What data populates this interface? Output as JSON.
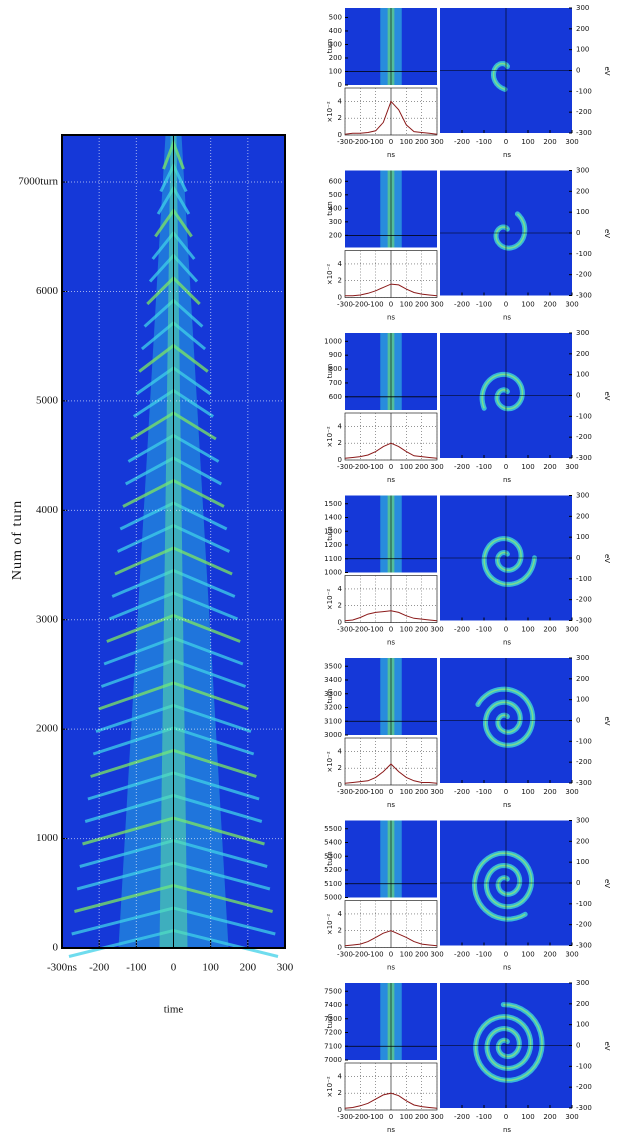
{
  "chart_data": [
    {
      "type": "heatmap",
      "x_label": "time",
      "y_label": "Num of turn",
      "xlim": [
        -300,
        300
      ],
      "xticks": [
        {
          "value": -300,
          "label": "-300ns"
        },
        -200,
        -100,
        0,
        100,
        200,
        300
      ],
      "ylim": [
        0,
        7430
      ],
      "yticks": [
        0,
        1000,
        2000,
        3000,
        4000,
        5000,
        6000,
        {
          "value": 7000,
          "label": "7000turn"
        }
      ],
      "grid": true
    },
    {
      "type": "composite",
      "turn_label": "turn",
      "turn_ylim": [
        0,
        570
      ],
      "turn_yticks": [
        0,
        100,
        200,
        300,
        400,
        500
      ],
      "snapshot_turn": 100,
      "profile_label": "×10⁻²",
      "profile_ylim": [
        0,
        5.6
      ],
      "profile_yticks": [
        0,
        2,
        4
      ],
      "profile_xlim": [
        -300,
        300
      ],
      "profile_xticks": [
        -300,
        -200,
        -100,
        0,
        100,
        200,
        300
      ],
      "profile_xlabel": "ns",
      "profile_x": [
        -300,
        -250,
        -200,
        -150,
        -100,
        -50,
        0,
        50,
        100,
        150,
        200,
        250,
        300
      ],
      "profile": [
        0.1,
        0.2,
        0.2,
        0.3,
        0.5,
        1.5,
        4.0,
        3.0,
        1.2,
        0.4,
        0.3,
        0.2,
        0.1
      ],
      "profile_color": "#8b1a1a",
      "phase_xlim": [
        -300,
        300
      ],
      "phase_xticks": [
        -200,
        -100,
        0,
        100,
        200,
        300
      ],
      "phase_xlabel": "ns",
      "phase_ylim": [
        -300,
        300
      ],
      "phase_yticks": [
        -300,
        -200,
        -100,
        0,
        100,
        200,
        300
      ],
      "phase_ylabel": "eV"
    },
    {
      "type": "composite",
      "turn_label": "turn",
      "turn_ylim": [
        110,
        680
      ],
      "turn_yticks": [
        200,
        300,
        400,
        500,
        600
      ],
      "snapshot_turn": 200,
      "profile_label": "×10⁻²",
      "profile_ylim": [
        0,
        5.6
      ],
      "profile_yticks": [
        0,
        2,
        4
      ],
      "profile_xlim": [
        -300,
        300
      ],
      "profile_xticks": [
        -300,
        -200,
        -100,
        0,
        100,
        200,
        300
      ],
      "profile_xlabel": "ns",
      "profile_x": [
        -300,
        -250,
        -200,
        -150,
        -100,
        -50,
        0,
        50,
        100,
        150,
        200,
        250,
        300
      ],
      "profile": [
        0.2,
        0.2,
        0.3,
        0.5,
        0.8,
        1.2,
        1.6,
        1.5,
        1.0,
        0.6,
        0.4,
        0.3,
        0.2
      ],
      "profile_color": "#8b1a1a",
      "phase_xlim": [
        -300,
        300
      ],
      "phase_xticks": [
        -200,
        -100,
        0,
        100,
        200,
        300
      ],
      "phase_xlabel": "ns",
      "phase_ylim": [
        -300,
        300
      ],
      "phase_yticks": [
        -300,
        -200,
        -100,
        0,
        100,
        200,
        300
      ],
      "phase_ylabel": "eV"
    },
    {
      "type": "composite",
      "turn_label": "turn",
      "turn_ylim": [
        505,
        1060
      ],
      "turn_yticks": [
        600,
        700,
        800,
        900,
        1000
      ],
      "snapshot_turn": 600,
      "profile_label": "×10⁻²",
      "profile_ylim": [
        0,
        5.6
      ],
      "profile_yticks": [
        0,
        2,
        4
      ],
      "profile_xlim": [
        -300,
        300
      ],
      "profile_xticks": [
        -300,
        -200,
        -100,
        0,
        100,
        200,
        300
      ],
      "profile_xlabel": "ns",
      "profile_x": [
        -300,
        -250,
        -200,
        -150,
        -100,
        -50,
        0,
        50,
        100,
        150,
        200,
        250,
        300
      ],
      "profile": [
        0.2,
        0.3,
        0.4,
        0.6,
        1.0,
        1.6,
        2.0,
        1.6,
        1.0,
        0.5,
        0.4,
        0.3,
        0.2
      ],
      "profile_color": "#8b1a1a",
      "phase_xlim": [
        -300,
        300
      ],
      "phase_xticks": [
        -200,
        -100,
        0,
        100,
        200,
        300
      ],
      "phase_xlabel": "ns",
      "phase_ylim": [
        -300,
        300
      ],
      "phase_yticks": [
        -300,
        -200,
        -100,
        0,
        100,
        200,
        300
      ],
      "phase_ylabel": "eV"
    },
    {
      "type": "composite",
      "turn_label": "turn",
      "turn_ylim": [
        1000,
        1560
      ],
      "turn_yticks": [
        1000,
        1100,
        1200,
        1300,
        1400,
        1500
      ],
      "snapshot_turn": 1100,
      "profile_label": "×10⁻²",
      "profile_ylim": [
        0,
        5.6
      ],
      "profile_yticks": [
        0,
        2,
        4
      ],
      "profile_xlim": [
        -300,
        300
      ],
      "profile_xticks": [
        -300,
        -200,
        -100,
        0,
        100,
        200,
        300
      ],
      "profile_xlabel": "ns",
      "profile_x": [
        -300,
        -250,
        -200,
        -150,
        -100,
        -50,
        0,
        50,
        100,
        150,
        200,
        250,
        300
      ],
      "profile": [
        0.2,
        0.3,
        0.6,
        1.0,
        1.2,
        1.3,
        1.4,
        1.2,
        0.8,
        0.5,
        0.4,
        0.3,
        0.2
      ],
      "profile_color": "#8b1a1a",
      "phase_xlim": [
        -300,
        300
      ],
      "phase_xticks": [
        -200,
        -100,
        0,
        100,
        200,
        300
      ],
      "phase_xlabel": "ns",
      "phase_ylim": [
        -300,
        300
      ],
      "phase_yticks": [
        -300,
        -200,
        -100,
        0,
        100,
        200,
        300
      ],
      "phase_ylabel": "eV"
    },
    {
      "type": "composite",
      "turn_label": "turn",
      "turn_ylim": [
        3000,
        3560
      ],
      "turn_yticks": [
        3000,
        3100,
        3200,
        3300,
        3400,
        3500
      ],
      "snapshot_turn": 3100,
      "profile_label": "×10⁻²",
      "profile_ylim": [
        0,
        5.6
      ],
      "profile_yticks": [
        0,
        2,
        4
      ],
      "profile_xlim": [
        -300,
        300
      ],
      "profile_xticks": [
        -300,
        -200,
        -100,
        0,
        100,
        200,
        300
      ],
      "profile_xlabel": "ns",
      "profile_x": [
        -300,
        -250,
        -200,
        -150,
        -100,
        -50,
        0,
        50,
        100,
        150,
        200,
        250,
        300
      ],
      "profile": [
        0.2,
        0.3,
        0.4,
        0.5,
        0.9,
        1.6,
        2.5,
        1.6,
        0.9,
        0.5,
        0.3,
        0.3,
        0.2
      ],
      "profile_color": "#8b1a1a",
      "phase_xlim": [
        -300,
        300
      ],
      "phase_xticks": [
        -200,
        -100,
        0,
        100,
        200,
        300
      ],
      "phase_xlabel": "ns",
      "phase_ylim": [
        -300,
        300
      ],
      "phase_yticks": [
        -300,
        -200,
        -100,
        0,
        100,
        200,
        300
      ],
      "phase_ylabel": "eV"
    },
    {
      "type": "composite",
      "turn_label": "turn",
      "turn_ylim": [
        5000,
        5560
      ],
      "turn_yticks": [
        5000,
        5100,
        5200,
        5300,
        5400,
        5500
      ],
      "snapshot_turn": 5100,
      "profile_label": "×10⁻²",
      "profile_ylim": [
        0,
        5.6
      ],
      "profile_yticks": [
        0,
        2,
        4
      ],
      "profile_xlim": [
        -300,
        300
      ],
      "profile_xticks": [
        -300,
        -200,
        -100,
        0,
        100,
        200,
        300
      ],
      "profile_xlabel": "ns",
      "profile_x": [
        -300,
        -250,
        -200,
        -150,
        -100,
        -50,
        0,
        50,
        100,
        150,
        200,
        250,
        300
      ],
      "profile": [
        0.2,
        0.3,
        0.4,
        0.7,
        1.2,
        1.7,
        2.0,
        1.6,
        1.2,
        0.7,
        0.4,
        0.3,
        0.2
      ],
      "profile_color": "#8b1a1a",
      "phase_xlim": [
        -300,
        300
      ],
      "phase_xticks": [
        -200,
        -100,
        0,
        100,
        200,
        300
      ],
      "phase_xlabel": "ns",
      "phase_ylim": [
        -300,
        300
      ],
      "phase_yticks": [
        -300,
        -200,
        -100,
        0,
        100,
        200,
        300
      ],
      "phase_ylabel": "eV"
    },
    {
      "type": "composite",
      "turn_label": "turn",
      "turn_ylim": [
        7000,
        7560
      ],
      "turn_yticks": [
        7000,
        7100,
        7200,
        7300,
        7400,
        7500
      ],
      "snapshot_turn": 7100,
      "profile_label": "×10⁻²",
      "profile_ylim": [
        0,
        5.6
      ],
      "profile_yticks": [
        0,
        2,
        4
      ],
      "profile_xlim": [
        -300,
        300
      ],
      "profile_xticks": [
        -300,
        -200,
        -100,
        0,
        100,
        200,
        300
      ],
      "profile_xlabel": "ns",
      "profile_x": [
        -300,
        -250,
        -200,
        -150,
        -100,
        -50,
        0,
        50,
        100,
        150,
        200,
        250,
        300
      ],
      "profile": [
        0.2,
        0.3,
        0.5,
        0.8,
        1.3,
        1.8,
        2.0,
        1.7,
        1.1,
        0.6,
        0.4,
        0.3,
        0.2
      ],
      "profile_color": "#8b1a1a",
      "phase_xlim": [
        -300,
        300
      ],
      "phase_xticks": [
        -200,
        -100,
        0,
        100,
        200,
        300
      ],
      "phase_xlabel": "ns",
      "phase_ylim": [
        -300,
        300
      ],
      "phase_yticks": [
        -300,
        -200,
        -100,
        0,
        100,
        200,
        300
      ],
      "phase_ylabel": "eV"
    }
  ]
}
